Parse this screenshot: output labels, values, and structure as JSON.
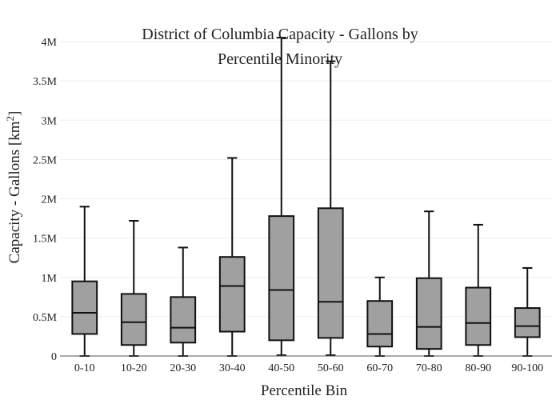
{
  "chart_data": {
    "type": "box",
    "title_lines": [
      "District of Columbia Capacity - Gallons by",
      "Percentile Minority"
    ],
    "xlabel": "Percentile Bin",
    "ylabel_main": "Capacity - Gallons  [km",
    "ylabel_sup": "2",
    "ylabel_close": "]",
    "ylim": [
      0,
      4000000
    ],
    "yticks": [
      {
        "value": 0,
        "label": "0"
      },
      {
        "value": 500000,
        "label": "0.5M"
      },
      {
        "value": 1000000,
        "label": "1M"
      },
      {
        "value": 1500000,
        "label": "1.5M"
      },
      {
        "value": 2000000,
        "label": "2M"
      },
      {
        "value": 2500000,
        "label": "2.5M"
      },
      {
        "value": 3000000,
        "label": "3M"
      },
      {
        "value": 3500000,
        "label": "3.5M"
      },
      {
        "value": 4000000,
        "label": "4M"
      }
    ],
    "grid": true,
    "box_color": "#a0a0a0",
    "line_color": "#111111",
    "grid_color": "#eeeeee",
    "categories": [
      "0-10",
      "10-20",
      "20-30",
      "30-40",
      "40-50",
      "50-60",
      "60-70",
      "70-80",
      "80-90",
      "90-100"
    ],
    "boxes": [
      {
        "min": 0,
        "q1": 280000,
        "median": 550000,
        "q3": 950000,
        "max": 1900000
      },
      {
        "min": 0,
        "q1": 140000,
        "median": 430000,
        "q3": 790000,
        "max": 1720000
      },
      {
        "min": 0,
        "q1": 170000,
        "median": 360000,
        "q3": 750000,
        "max": 1380000
      },
      {
        "min": 0,
        "q1": 310000,
        "median": 890000,
        "q3": 1260000,
        "max": 2520000
      },
      {
        "min": 10000,
        "q1": 200000,
        "median": 840000,
        "q3": 1780000,
        "max": 4050000
      },
      {
        "min": 10000,
        "q1": 230000,
        "median": 690000,
        "q3": 1880000,
        "max": 3750000
      },
      {
        "min": 0,
        "q1": 120000,
        "median": 280000,
        "q3": 700000,
        "max": 1000000
      },
      {
        "min": 0,
        "q1": 90000,
        "median": 370000,
        "q3": 990000,
        "max": 1840000
      },
      {
        "min": 0,
        "q1": 140000,
        "median": 420000,
        "q3": 870000,
        "max": 1670000
      },
      {
        "min": 0,
        "q1": 240000,
        "median": 380000,
        "q3": 610000,
        "max": 1120000
      }
    ]
  }
}
